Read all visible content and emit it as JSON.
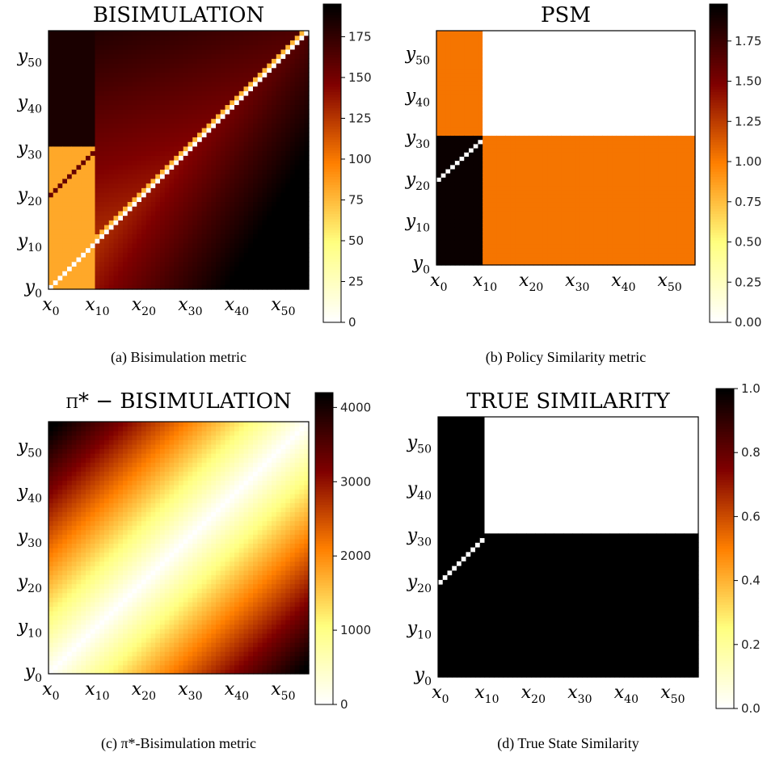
{
  "chart_data": [
    {
      "id": "a",
      "type": "heatmap",
      "title": "BISIMULATION",
      "caption": "(a) Bisimulation metric",
      "x_ticks": [
        "x0",
        "x10",
        "x20",
        "x30",
        "x40",
        "x50"
      ],
      "y_ticks": [
        "y0",
        "y10",
        "y20",
        "y30",
        "y40",
        "y50"
      ],
      "grid_size": 56,
      "pattern": "bisimulation",
      "colorbar": {
        "min": 0,
        "max": 195,
        "ticks": [
          0,
          25,
          50,
          75,
          100,
          125,
          150,
          175
        ]
      },
      "cmap": "afmhot_r"
    },
    {
      "id": "b",
      "type": "heatmap",
      "title": "PSM",
      "caption": "(b) Policy Similarity metric",
      "x_ticks": [
        "x0",
        "x10",
        "x20",
        "x30",
        "x40",
        "x50"
      ],
      "y_ticks": [
        "y0",
        "y10",
        "y20",
        "y30",
        "y40",
        "y50"
      ],
      "grid_size": 56,
      "pattern": "psm",
      "colorbar": {
        "min": 0,
        "max": 1.98,
        "ticks": [
          0.0,
          0.25,
          0.5,
          0.75,
          1.0,
          1.25,
          1.5,
          1.75
        ],
        "decimals": 2
      },
      "cmap": "afmhot_r"
    },
    {
      "id": "c",
      "type": "heatmap",
      "title": "π* − BISIMULATION",
      "caption": "(c) π*-Bisimulation metric",
      "x_ticks": [
        "x0",
        "x10",
        "x20",
        "x30",
        "x40",
        "x50"
      ],
      "y_ticks": [
        "y0",
        "y10",
        "y20",
        "y30",
        "y40",
        "y50"
      ],
      "grid_size": 56,
      "pattern": "pi_bisimulation",
      "colorbar": {
        "min": 0,
        "max": 4200,
        "ticks": [
          0,
          1000,
          2000,
          3000,
          4000
        ]
      },
      "cmap": "afmhot_r"
    },
    {
      "id": "d",
      "type": "heatmap",
      "title": "TRUE SIMILARITY",
      "caption": "(d) True State Similarity",
      "x_ticks": [
        "x0",
        "x10",
        "x20",
        "x30",
        "x40",
        "x50"
      ],
      "y_ticks": [
        "y0",
        "y10",
        "y20",
        "y30",
        "y40",
        "y50"
      ],
      "grid_size": 56,
      "pattern": "true_similarity",
      "colorbar": {
        "min": 0,
        "max": 1.0,
        "ticks": [
          0.0,
          0.2,
          0.4,
          0.6,
          0.8,
          1.0
        ],
        "decimals": 1
      },
      "cmap": "afmhot_r"
    }
  ]
}
